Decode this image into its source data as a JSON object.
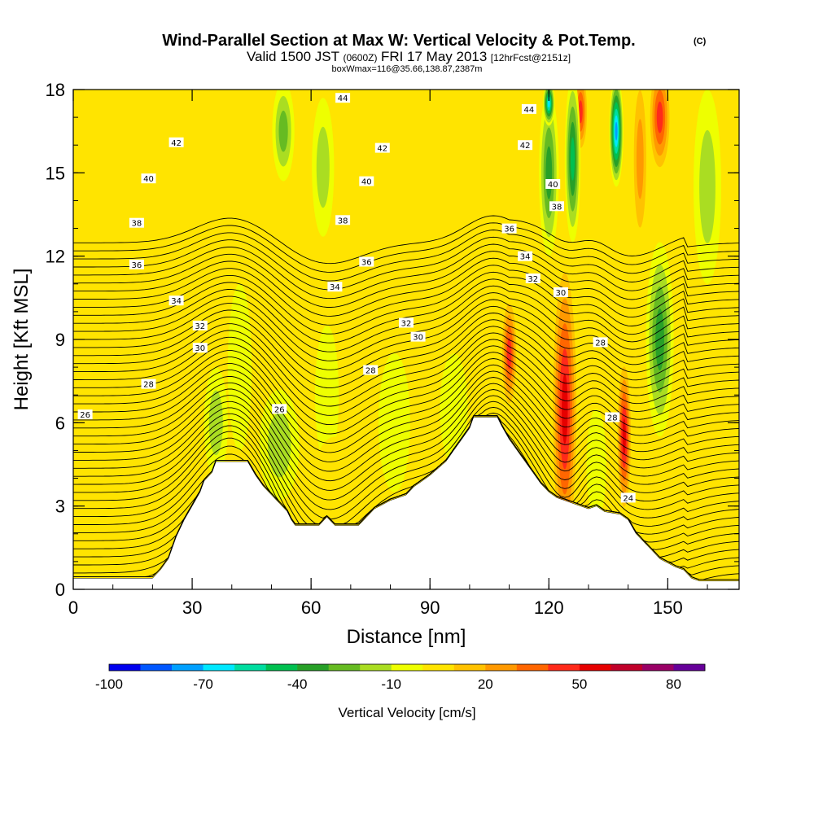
{
  "title": {
    "main": "Wind-Parallel Section at Max W: Vertical Velocity & Pot.Temp.",
    "copyright": "(C)",
    "valid_prefix": "Valid 1500 JST",
    "valid_z": "(0600Z)",
    "valid_date": "FRI 17 May 2013",
    "valid_fcst": "[12hrFcst@2151z]",
    "box": "boxWmax=116@35.66,138.87,2387m"
  },
  "chart_data": {
    "type": "heatmap",
    "xlabel": "Distance [nm]",
    "ylabel": "Height [Kft MSL]",
    "xlim": [
      0,
      168
    ],
    "ylim": [
      0,
      18
    ],
    "x_ticks": [
      0,
      30,
      60,
      90,
      120,
      150
    ],
    "y_ticks": [
      0,
      3,
      6,
      9,
      12,
      15,
      18
    ],
    "grid": false,
    "colorbar": {
      "label": "Vertical Velocity [cm/s]",
      "bounds": [
        -100,
        -90,
        -80,
        -70,
        -60,
        -50,
        -40,
        -30,
        -20,
        -10,
        0,
        10,
        20,
        30,
        40,
        50,
        60,
        70,
        80,
        90
      ],
      "tick_labels": [
        "-100",
        "-70",
        "-40",
        "-10",
        "20",
        "50",
        "80"
      ],
      "tick_values": [
        -100,
        -70,
        -40,
        -10,
        20,
        50,
        80
      ],
      "colors": [
        "#0000ee",
        "#0057ff",
        "#00a0ff",
        "#00e8ff",
        "#00dda0",
        "#00c050",
        "#28a028",
        "#66bb22",
        "#aadd22",
        "#eeff00",
        "#ffe400",
        "#ffc200",
        "#ff9900",
        "#ff6600",
        "#ff2a1a",
        "#e60000",
        "#c0002a",
        "#990066",
        "#660099"
      ]
    },
    "terrain_heights_kft": [
      [
        0,
        0.4
      ],
      [
        20,
        0.4
      ],
      [
        22,
        0.7
      ],
      [
        24,
        1.1
      ],
      [
        26,
        1.9
      ],
      [
        28,
        2.5
      ],
      [
        30,
        3.0
      ],
      [
        32,
        3.5
      ],
      [
        33,
        3.9
      ],
      [
        35,
        4.2
      ],
      [
        36,
        4.6
      ],
      [
        44,
        4.6
      ],
      [
        46,
        4.1
      ],
      [
        48,
        3.7
      ],
      [
        50,
        3.4
      ],
      [
        52,
        3.1
      ],
      [
        54,
        2.8
      ],
      [
        55,
        2.5
      ],
      [
        56,
        2.3
      ],
      [
        62,
        2.3
      ],
      [
        64,
        2.6
      ],
      [
        66,
        2.3
      ],
      [
        72,
        2.3
      ],
      [
        74,
        2.6
      ],
      [
        76,
        2.9
      ],
      [
        80,
        3.2
      ],
      [
        84,
        3.4
      ],
      [
        86,
        3.7
      ],
      [
        88,
        3.9
      ],
      [
        90,
        4.1
      ],
      [
        94,
        4.6
      ],
      [
        96,
        5.0
      ],
      [
        98,
        5.4
      ],
      [
        100,
        5.8
      ],
      [
        101,
        6.2
      ],
      [
        107,
        6.2
      ],
      [
        108,
        5.9
      ],
      [
        110,
        5.4
      ],
      [
        112,
        5.0
      ],
      [
        114,
        4.6
      ],
      [
        116,
        4.2
      ],
      [
        118,
        3.8
      ],
      [
        120,
        3.5
      ],
      [
        122,
        3.3
      ],
      [
        124,
        3.2
      ],
      [
        126,
        3.1
      ],
      [
        128,
        3.0
      ],
      [
        130,
        2.9
      ],
      [
        132,
        3.0
      ],
      [
        134,
        2.8
      ],
      [
        138,
        2.7
      ],
      [
        140,
        2.5
      ],
      [
        142,
        2.0
      ],
      [
        144,
        1.7
      ],
      [
        146,
        1.4
      ],
      [
        148,
        1.1
      ],
      [
        152,
        0.8
      ],
      [
        154,
        0.7
      ],
      [
        156,
        0.4
      ],
      [
        158,
        0.3
      ],
      [
        168,
        0.3
      ]
    ],
    "theta_contour_labels_C": [
      {
        "x": 3,
        "y": 6.3,
        "value": "26"
      },
      {
        "x": 52,
        "y": 6.5,
        "value": "26"
      },
      {
        "x": 19,
        "y": 7.4,
        "value": "28"
      },
      {
        "x": 75,
        "y": 7.9,
        "value": "28"
      },
      {
        "x": 32,
        "y": 8.7,
        "value": "30"
      },
      {
        "x": 87,
        "y": 9.1,
        "value": "30"
      },
      {
        "x": 32,
        "y": 9.5,
        "value": "32"
      },
      {
        "x": 84,
        "y": 9.6,
        "value": "32"
      },
      {
        "x": 26,
        "y": 10.4,
        "value": "34"
      },
      {
        "x": 66,
        "y": 10.9,
        "value": "34"
      },
      {
        "x": 16,
        "y": 11.7,
        "value": "36"
      },
      {
        "x": 74,
        "y": 11.8,
        "value": "36"
      },
      {
        "x": 16,
        "y": 13.2,
        "value": "38"
      },
      {
        "x": 68,
        "y": 13.3,
        "value": "38"
      },
      {
        "x": 19,
        "y": 14.8,
        "value": "40"
      },
      {
        "x": 74,
        "y": 14.7,
        "value": "40"
      },
      {
        "x": 26,
        "y": 16.1,
        "value": "42"
      },
      {
        "x": 78,
        "y": 15.9,
        "value": "42"
      },
      {
        "x": 68,
        "y": 17.7,
        "value": "44"
      },
      {
        "x": 115,
        "y": 17.3,
        "value": "44"
      },
      {
        "x": 114,
        "y": 16.0,
        "value": "42"
      },
      {
        "x": 121,
        "y": 14.6,
        "value": "40"
      },
      {
        "x": 122,
        "y": 13.8,
        "value": "38"
      },
      {
        "x": 110,
        "y": 13.0,
        "value": "36"
      },
      {
        "x": 114,
        "y": 12.0,
        "value": "34"
      },
      {
        "x": 116,
        "y": 11.2,
        "value": "32"
      },
      {
        "x": 123,
        "y": 10.7,
        "value": "30"
      },
      {
        "x": 133,
        "y": 8.9,
        "value": "28"
      },
      {
        "x": 136,
        "y": 6.2,
        "value": "28"
      },
      {
        "x": 140,
        "y": 3.3,
        "value": "24"
      }
    ],
    "theta_contour_levels_C": [
      23.5,
      24,
      24.5,
      25,
      25.5,
      26,
      26.5,
      27,
      27.5,
      28,
      28.5,
      29,
      29.5,
      30,
      30.5,
      31,
      31.5,
      32,
      32.5,
      33,
      33.5,
      34,
      34.5,
      35,
      35.5,
      36,
      36.5,
      37,
      37.5,
      38,
      38.5,
      39,
      39.5,
      40,
      40.5,
      41,
      41.5,
      42,
      42.5,
      43,
      43.5,
      44,
      44.5,
      45
    ],
    "vertical_velocity_cells_cms": [
      {
        "x": 124,
        "y": 8.0,
        "rx": 2.5,
        "ry": 3.4,
        "value": 90
      },
      {
        "x": 124,
        "y": 6.5,
        "rx": 3.5,
        "ry": 5.8,
        "value": 60
      },
      {
        "x": 110,
        "y": 8.5,
        "rx": 2.2,
        "ry": 2.2,
        "value": 55
      },
      {
        "x": 139,
        "y": 5.5,
        "rx": 2.0,
        "ry": 3.0,
        "value": 60
      },
      {
        "x": 128,
        "y": 17.2,
        "rx": 2.0,
        "ry": 1.6,
        "value": 55
      },
      {
        "x": 148,
        "y": 17.0,
        "rx": 3.0,
        "ry": 2.2,
        "value": 55
      },
      {
        "x": 143,
        "y": 15.5,
        "rx": 2.2,
        "ry": 3.5,
        "value": 30
      },
      {
        "x": 120,
        "y": 15.0,
        "rx": 2.5,
        "ry": 3.0,
        "value": -40
      },
      {
        "x": 126,
        "y": 15.5,
        "rx": 2.0,
        "ry": 3.0,
        "value": -50
      },
      {
        "x": 137,
        "y": 16.5,
        "rx": 1.8,
        "ry": 2.0,
        "value": -80
      },
      {
        "x": 120,
        "y": 17.5,
        "rx": 1.5,
        "ry": 0.8,
        "value": -70
      },
      {
        "x": 148,
        "y": 9.0,
        "rx": 3.5,
        "ry": 3.5,
        "value": -40
      },
      {
        "x": 160,
        "y": 14.5,
        "rx": 3.5,
        "ry": 3.5,
        "value": -20
      },
      {
        "x": 63,
        "y": 15.2,
        "rx": 2.8,
        "ry": 2.5,
        "value": -20
      },
      {
        "x": 53,
        "y": 16.5,
        "rx": 2.8,
        "ry": 1.8,
        "value": -30
      },
      {
        "x": 48,
        "y": 12.0,
        "rx": 4.0,
        "ry": 4.0,
        "value": 15
      },
      {
        "x": 42,
        "y": 8.0,
        "rx": 3.0,
        "ry": 3.0,
        "value": -15
      },
      {
        "x": 36,
        "y": 6.0,
        "rx": 3.0,
        "ry": 2.0,
        "value": -20
      },
      {
        "x": 52,
        "y": 5.2,
        "rx": 5.0,
        "ry": 2.0,
        "value": -20
      },
      {
        "x": 64,
        "y": 7.0,
        "rx": 3.0,
        "ry": 2.5,
        "value": -15
      },
      {
        "x": 81,
        "y": 6.0,
        "rx": 4.0,
        "ry": 2.5,
        "value": -15
      },
      {
        "x": 96,
        "y": 6.5,
        "rx": 3.5,
        "ry": 2.0,
        "value": -15
      },
      {
        "x": 66,
        "y": 3.5,
        "rx": 6.0,
        "ry": 2.0,
        "value": 15
      },
      {
        "x": 35,
        "y": 9.0,
        "rx": 4.0,
        "ry": 1.0,
        "value": 15
      },
      {
        "x": 104,
        "y": 5.0,
        "rx": 3.0,
        "ry": 1.5,
        "value": 15
      },
      {
        "x": 132,
        "y": 4.5,
        "rx": 2.5,
        "ry": 2.0,
        "value": -10
      },
      {
        "x": 162,
        "y": 4.0,
        "rx": 4.0,
        "ry": 2.5,
        "value": 15
      }
    ]
  }
}
